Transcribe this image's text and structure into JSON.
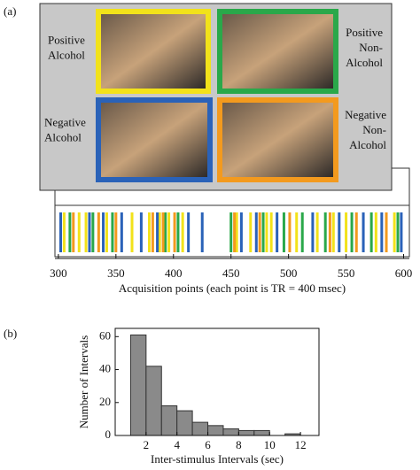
{
  "panel_labels": [
    "(a)",
    "(b)"
  ],
  "conditions": [
    {
      "lines": [
        "Positive",
        "Alcohol"
      ],
      "color": "#f2e21a"
    },
    {
      "lines": [
        "Positive",
        "Non-",
        "Alcohol"
      ],
      "color": "#2aa84a"
    },
    {
      "lines": [
        "Negative",
        "Alcohol"
      ],
      "color": "#2a62b8"
    },
    {
      "lines": [
        "Negative",
        "Non-",
        "Alcohol"
      ],
      "color": "#f39a1e"
    }
  ],
  "chart_data": [
    {
      "type": "event",
      "xlabel": "Acquisition points (each point is TR = 400 msec)",
      "xlim": [
        297,
        605
      ],
      "xticks": [
        300,
        350,
        400,
        450,
        500,
        550,
        600
      ],
      "series": [
        {
          "color": "#f2e21a",
          "x": [
            305,
            318,
            324,
            342,
            364,
            379,
            388,
            396,
            408,
            455,
            467,
            481,
            485,
            507,
            525,
            539,
            550,
            576,
            592
          ]
        },
        {
          "color": "#2aa84a",
          "x": [
            310,
            330,
            347,
            393,
            404,
            450,
            478,
            496,
            512,
            532,
            555,
            572,
            595
          ]
        },
        {
          "color": "#2a62b8",
          "x": [
            302,
            327,
            339,
            355,
            372,
            386,
            413,
            425,
            459,
            472,
            490,
            521,
            544,
            565,
            581,
            598
          ]
        },
        {
          "color": "#f39a1e",
          "x": [
            313,
            335,
            350,
            382,
            391,
            401,
            453,
            475,
            501,
            536,
            559,
            585
          ]
        }
      ]
    },
    {
      "type": "histogram",
      "xlabel": "Inter-stimulus Intervals (sec)",
      "ylabel": "Number of Intervals",
      "bins": [
        1,
        2,
        3,
        4,
        5,
        6,
        7,
        8,
        9,
        10,
        11,
        12
      ],
      "values": [
        61,
        42,
        18,
        15,
        8,
        6,
        4,
        3,
        3,
        0,
        1
      ],
      "color": "#8a8a8a",
      "xlim": [
        0,
        13.2
      ],
      "xticks": [
        2,
        4,
        6,
        8,
        10,
        12
      ],
      "ylim": [
        0,
        65
      ],
      "yticks": [
        0,
        20,
        40,
        60
      ]
    }
  ]
}
